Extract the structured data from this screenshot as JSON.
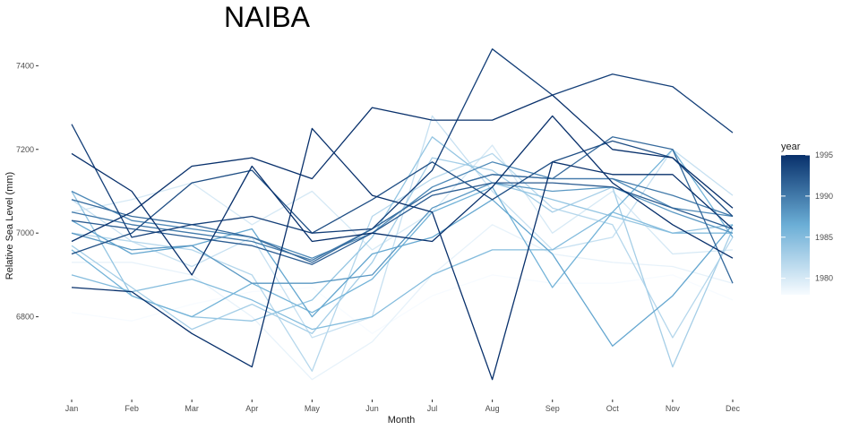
{
  "chart_data": {
    "type": "line",
    "title": "NAIBA",
    "xlabel": "Month",
    "ylabel": "Relative Sea Level (mm)",
    "categories": [
      "Jan",
      "Feb",
      "Mar",
      "Apr",
      "May",
      "Jun",
      "Jul",
      "Aug",
      "Sep",
      "Oct",
      "Nov",
      "Dec"
    ],
    "ylim": [
      6615,
      7465
    ],
    "yticks": [
      6800,
      7000,
      7200,
      7400
    ],
    "grid": false,
    "legend": {
      "title": "year",
      "position": "right",
      "type": "colorbar",
      "range": [
        1978,
        1995
      ],
      "ticks": [
        1980,
        1985,
        1990,
        1995
      ],
      "low_color": "#f7fbff",
      "high_color": "#08306b"
    },
    "series": [
      {
        "year": 1978,
        "values": [
          6810,
          6790,
          6830,
          6860,
          6870,
          6760,
          6850,
          6900,
          6880,
          6880,
          6900,
          6840
        ]
      },
      {
        "year": 1979,
        "values": [
          6930,
          6930,
          6900,
          6800,
          6650,
          6740,
          6900,
          7020,
          6950,
          6930,
          6920,
          6880
        ]
      },
      {
        "year": 1980,
        "values": [
          7050,
          7080,
          7120,
          7020,
          7100,
          6960,
          7050,
          7210,
          7000,
          7100,
          6950,
          6960
        ]
      },
      {
        "year": 1981,
        "values": [
          7080,
          6980,
          6920,
          6990,
          6750,
          6800,
          7280,
          7100,
          6960,
          6990,
          7200,
          7090
        ]
      },
      {
        "year": 1982,
        "values": [
          7000,
          6980,
          6960,
          6900,
          6670,
          7040,
          7130,
          7190,
          7060,
          7020,
          6750,
          6990
        ]
      },
      {
        "year": 1983,
        "values": [
          6970,
          6870,
          6770,
          6830,
          6760,
          6930,
          7180,
          7150,
          7050,
          7110,
          6680,
          7010
        ]
      },
      {
        "year": 1984,
        "values": [
          7100,
          6850,
          6800,
          6790,
          6840,
          6990,
          7230,
          7120,
          7080,
          7040,
          7000,
          7020
        ]
      },
      {
        "year": 1985,
        "values": [
          6900,
          6860,
          6890,
          6840,
          6770,
          6800,
          6900,
          6960,
          6960,
          7050,
          7000,
          7000
        ]
      },
      {
        "year": 1986,
        "values": [
          6960,
          6850,
          6800,
          6880,
          6810,
          6890,
          7050,
          7110,
          6870,
          7050,
          7200,
          6990
        ]
      },
      {
        "year": 1987,
        "values": [
          7030,
          6950,
          6970,
          7010,
          6800,
          6950,
          6990,
          7080,
          6950,
          6730,
          6850,
          7020
        ]
      },
      {
        "year": 1988,
        "values": [
          7000,
          6960,
          6970,
          6880,
          6880,
          6900,
          7060,
          7120,
          7100,
          7110,
          7050,
          7000
        ]
      },
      {
        "year": 1989,
        "values": [
          7100,
          7030,
          7010,
          6990,
          6940,
          7000,
          7110,
          7170,
          7130,
          7130,
          7060,
          7040
        ]
      },
      {
        "year": 1990,
        "values": [
          7050,
          7020,
          7000,
          6980,
          6935,
          7010,
          7100,
          7140,
          7130,
          7130,
          7090,
          7040
        ]
      },
      {
        "year": 1991,
        "values": [
          7080,
          7040,
          7020,
          6990,
          6930,
          7010,
          7100,
          7140,
          7130,
          7230,
          7200,
          6880
        ]
      },
      {
        "year": 1992,
        "values": [
          7030,
          7010,
          6990,
          6970,
          6925,
          7000,
          7090,
          7120,
          7120,
          7110,
          7060,
          7010
        ]
      },
      {
        "year": 1993,
        "values": [
          6950,
          7000,
          7120,
          7150,
          7000,
          7080,
          7170,
          7080,
          7170,
          7220,
          7180,
          7040
        ]
      },
      {
        "year": 1994,
        "values": [
          7260,
          6990,
          7020,
          7040,
          7000,
          7010,
          7150,
          7440,
          7330,
          7380,
          7350,
          7240
        ]
      },
      {
        "year": 1995,
        "values": [
          7190,
          7100,
          6900,
          7160,
          6980,
          7000,
          6980,
          7110,
          7280,
          7120,
          7020,
          6940
        ]
      },
      {
        "year": 1995,
        "values": [
          6870,
          6860,
          6760,
          6680,
          7250,
          7090,
          7050,
          6650,
          7170,
          7140,
          7140,
          7010
        ]
      },
      {
        "year": 1995,
        "values": [
          6980,
          7050,
          7160,
          7180,
          7130,
          7300,
          7270,
          7270,
          7330,
          7200,
          7180,
          7060
        ]
      }
    ]
  }
}
